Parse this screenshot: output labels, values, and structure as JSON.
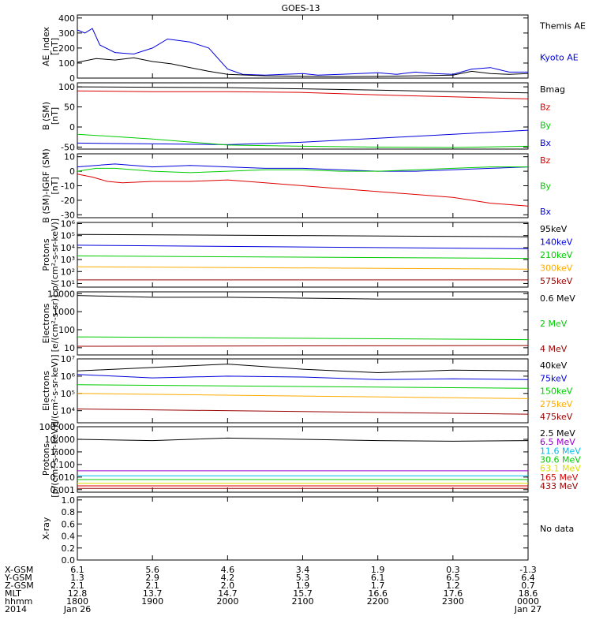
{
  "title": "GOES-13",
  "colors": {
    "black": "#000000",
    "blue": "#0000dd",
    "green": "#00cc00",
    "red": "#dd0000",
    "orange": "#ffaa00",
    "darkred": "#990000",
    "cyan": "#00bbee",
    "purple": "#9900cc",
    "yellow": "#dddd00"
  },
  "chart_data": [
    {
      "type": "line",
      "ylabel": [
        "AE_index",
        "[nT]"
      ],
      "yticks": [
        "0",
        "100",
        "200",
        "300",
        "400"
      ],
      "ylim": [
        0,
        420
      ],
      "ytickvals": [
        0,
        100,
        200,
        300,
        400
      ],
      "log": false,
      "series": [
        {
          "name": "Kyoto AE",
          "color": "#0000dd",
          "x": [
            0,
            0.1,
            0.2,
            0.3,
            0.5,
            0.75,
            1,
            1.2,
            1.5,
            1.75,
            2,
            2.2,
            2.5,
            2.75,
            3,
            3.2,
            3.5,
            3.75,
            4,
            4.25,
            4.5,
            4.75,
            5,
            5.25,
            5.5,
            5.75,
            6
          ],
          "y": [
            320,
            300,
            330,
            220,
            170,
            160,
            200,
            260,
            240,
            200,
            60,
            25,
            20,
            25,
            30,
            20,
            25,
            30,
            35,
            25,
            40,
            30,
            25,
            60,
            70,
            40,
            40
          ]
        },
        {
          "name": "Themis AE",
          "color": "#000000",
          "x": [
            0,
            0.25,
            0.5,
            0.75,
            1,
            1.25,
            1.5,
            1.75,
            2,
            2.5,
            3,
            3.5,
            4,
            4.5,
            5,
            5.25,
            5.5,
            5.75,
            6
          ],
          "y": [
            105,
            130,
            120,
            135,
            110,
            95,
            70,
            45,
            25,
            15,
            12,
            10,
            12,
            15,
            20,
            45,
            30,
            25,
            30
          ]
        }
      ]
    },
    {
      "type": "line",
      "ylabel": [
        "B (SM)",
        "[nT]"
      ],
      "yticks": [
        "-50",
        "0",
        "50",
        "100"
      ],
      "ylim": [
        -55,
        110
      ],
      "ytickvals": [
        -50,
        0,
        50,
        100
      ],
      "log": false,
      "series": [
        {
          "name": "Bx",
          "color": "#0000dd",
          "x": [
            0,
            1,
            2,
            3,
            4,
            5,
            6
          ],
          "y": [
            -40,
            -42,
            -44,
            -38,
            -28,
            -18,
            -8
          ]
        },
        {
          "name": "By",
          "color": "#00cc00",
          "x": [
            0,
            1,
            2,
            3,
            4,
            5,
            6
          ],
          "y": [
            -18,
            -30,
            -45,
            -48,
            -50,
            -51,
            -48
          ]
        },
        {
          "name": "Bz",
          "color": "#dd0000",
          "x": [
            0,
            1,
            2,
            3,
            4,
            5,
            6
          ],
          "y": [
            90,
            88,
            88,
            86,
            80,
            75,
            70
          ]
        },
        {
          "name": "Bmag",
          "color": "#000000",
          "x": [
            0,
            1,
            2,
            3,
            4,
            5,
            6
          ],
          "y": [
            100,
            99,
            98,
            95,
            92,
            88,
            85
          ]
        }
      ]
    },
    {
      "type": "line",
      "ylabel": [
        "B (SM)-IGRF (SM)",
        "[nT]"
      ],
      "yticks": [
        "-30",
        "-20",
        "-10",
        "0",
        "10"
      ],
      "ylim": [
        -32,
        12
      ],
      "ytickvals": [
        -30,
        -20,
        -10,
        0,
        10
      ],
      "log": false,
      "series": [
        {
          "name": "Bx",
          "color": "#0000dd",
          "x": [
            0,
            0.25,
            0.5,
            1,
            1.5,
            2,
            2.5,
            3,
            3.5,
            4,
            4.5,
            5,
            5.5,
            6
          ],
          "y": [
            3,
            4,
            5,
            3,
            4,
            3,
            2,
            2,
            1,
            0,
            0,
            1,
            2,
            3
          ]
        },
        {
          "name": "By",
          "color": "#00cc00",
          "x": [
            0,
            0.25,
            0.5,
            1,
            1.5,
            2,
            2.5,
            3,
            3.5,
            4,
            4.5,
            5,
            5.5,
            6
          ],
          "y": [
            0,
            2,
            2,
            0,
            -1,
            0,
            1,
            1,
            0,
            0,
            1,
            2,
            3,
            3
          ]
        },
        {
          "name": "Bz",
          "color": "#dd0000",
          "x": [
            0,
            0.2,
            0.4,
            0.6,
            1,
            1.5,
            2,
            2.5,
            3,
            3.5,
            4,
            4.5,
            5,
            5.5,
            6
          ],
          "y": [
            -2,
            -4,
            -7,
            -8,
            -7,
            -7,
            -6,
            -8,
            -10,
            -12,
            -14,
            -16,
            -18,
            -22,
            -24
          ]
        }
      ]
    },
    {
      "type": "line",
      "ylabel": [
        "Protons",
        "p/(cm²-s-sr-keV)]"
      ],
      "yticks": [
        "10¹",
        "10²",
        "10³",
        "10⁴",
        "10⁵",
        "10⁶"
      ],
      "ylim": [
        0.7,
        6.1
      ],
      "ytickvals": [
        1,
        2,
        3,
        4,
        5,
        6
      ],
      "log": true,
      "series": [
        {
          "name": "575keV",
          "color": "#990000",
          "x": [
            0,
            6
          ],
          "y": [
            1.3,
            1.3
          ]
        },
        {
          "name": "300keV",
          "color": "#ffaa00",
          "x": [
            0,
            6
          ],
          "y": [
            2.4,
            2.2
          ]
        },
        {
          "name": "210keV",
          "color": "#00cc00",
          "x": [
            0,
            6
          ],
          "y": [
            3.3,
            3.1
          ]
        },
        {
          "name": "140keV",
          "color": "#0000dd",
          "x": [
            0,
            6
          ],
          "y": [
            4.2,
            3.9
          ]
        },
        {
          "name": "95keV",
          "color": "#000000",
          "x": [
            0,
            6
          ],
          "y": [
            5.1,
            4.9
          ]
        }
      ]
    },
    {
      "type": "line",
      "ylabel": [
        "Electrons",
        "[e/(cm²-s-sr)]"
      ],
      "yticks": [
        "10",
        "100",
        "1000",
        "10000"
      ],
      "ylim": [
        0.6,
        4.1
      ],
      "ytickvals": [
        1,
        2,
        3,
        4
      ],
      "log": true,
      "series": [
        {
          "name": "4 MeV",
          "color": "#990000",
          "x": [
            0,
            6
          ],
          "y": [
            1.08,
            1.12
          ]
        },
        {
          "name": "2 MeV",
          "color": "#00cc00",
          "x": [
            0,
            6
          ],
          "y": [
            1.6,
            1.45
          ]
        },
        {
          "name": "0.6 MeV",
          "color": "#000000",
          "x": [
            0,
            1,
            2,
            3,
            4,
            5,
            6
          ],
          "y": [
            3.9,
            3.8,
            3.8,
            3.75,
            3.7,
            3.7,
            3.7
          ]
        }
      ]
    },
    {
      "type": "line",
      "ylabel": [
        "Electrons",
        "e/(cm²-s-sr-keV)]"
      ],
      "yticks": [
        "10⁴",
        "10⁵",
        "10⁶",
        "10⁷"
      ],
      "ylim": [
        3.3,
        7.0
      ],
      "ytickvals": [
        4,
        5,
        6,
        7
      ],
      "log": true,
      "series": [
        {
          "name": "475keV",
          "color": "#990000",
          "x": [
            0,
            6
          ],
          "y": [
            4.1,
            3.8
          ]
        },
        {
          "name": "275keV",
          "color": "#ffaa00",
          "x": [
            0,
            6
          ],
          "y": [
            5.0,
            4.7
          ]
        },
        {
          "name": "150keV",
          "color": "#00cc00",
          "x": [
            0,
            6
          ],
          "y": [
            5.5,
            5.3
          ]
        },
        {
          "name": "75keV",
          "color": "#0000dd",
          "x": [
            0,
            1,
            2,
            3,
            4,
            5,
            6
          ],
          "y": [
            6.1,
            5.9,
            6.0,
            5.95,
            5.8,
            5.85,
            5.8
          ]
        },
        {
          "name": "40keV",
          "color": "#000000",
          "x": [
            0,
            1,
            2,
            3,
            4,
            5,
            6
          ],
          "y": [
            6.3,
            6.5,
            6.7,
            6.4,
            6.2,
            6.35,
            6.3
          ]
        }
      ]
    },
    {
      "type": "line",
      "ylabel": [
        "Protons",
        "[p/(cm²-s-sr-keV)]"
      ],
      "yticks": [
        "0.001",
        "0.010",
        "0.100",
        "1.000",
        "10.000",
        "100.000"
      ],
      "ylim": [
        -3.2,
        2.0
      ],
      "ytickvals": [
        -3,
        -2,
        -1,
        0,
        1,
        2
      ],
      "log": true,
      "series": [
        {
          "name": "433 MeV",
          "color": "#990000",
          "x": [
            0,
            6
          ],
          "y": [
            -2.9,
            -2.9
          ]
        },
        {
          "name": "165 MeV",
          "color": "#dd0000",
          "x": [
            0,
            6
          ],
          "y": [
            -2.7,
            -2.7
          ]
        },
        {
          "name": "63.1 MeV",
          "color": "#dddd00",
          "x": [
            0,
            6
          ],
          "y": [
            -2.5,
            -2.5
          ]
        },
        {
          "name": "30.6 MeV",
          "color": "#00cc00",
          "x": [
            0,
            6
          ],
          "y": [
            -2.2,
            -2.2
          ]
        },
        {
          "name": "11.6 MeV",
          "color": "#00bbee",
          "x": [
            0,
            6
          ],
          "y": [
            -1.9,
            -1.9
          ]
        },
        {
          "name": "6.5 MeV",
          "color": "#9900cc",
          "x": [
            0,
            6
          ],
          "y": [
            -1.5,
            -1.5
          ]
        },
        {
          "name": "2.5 MeV",
          "color": "#000000",
          "x": [
            0,
            1,
            2,
            3,
            4,
            5,
            6
          ],
          "y": [
            1.0,
            0.9,
            1.1,
            1.0,
            0.9,
            0.85,
            0.9
          ]
        }
      ]
    },
    {
      "type": "line",
      "ylabel": [
        "X-ray"
      ],
      "yticks": [
        "0.0",
        "0.2",
        "0.4",
        "0.6",
        "0.8",
        "1.0"
      ],
      "ylim": [
        0,
        1.05
      ],
      "ytickvals": [
        0,
        0.2,
        0.4,
        0.6,
        0.8,
        1.0
      ],
      "log": false,
      "series": [],
      "note": "No data"
    }
  ],
  "xaxis": {
    "rowlabels": [
      "X-GSM",
      "Y-GSM",
      "Z-GSM",
      "MLT",
      "hhmm",
      "2014"
    ],
    "columns": [
      [
        "6.1",
        "1.3",
        "2.1",
        "12.8",
        "1800",
        "Jan 26"
      ],
      [
        "5.6",
        "2.9",
        "2.1",
        "13.7",
        "1900",
        ""
      ],
      [
        "4.6",
        "4.2",
        "2.0",
        "14.7",
        "2000",
        ""
      ],
      [
        "3.4",
        "5.3",
        "1.9",
        "15.7",
        "2100",
        ""
      ],
      [
        "1.9",
        "6.1",
        "1.7",
        "16.6",
        "2200",
        ""
      ],
      [
        "0.3",
        "6.5",
        "1.2",
        "17.6",
        "2300",
        ""
      ],
      [
        "-1.3",
        "6.4",
        "0.7",
        "18.6",
        "0000",
        "Jan 27"
      ]
    ]
  }
}
